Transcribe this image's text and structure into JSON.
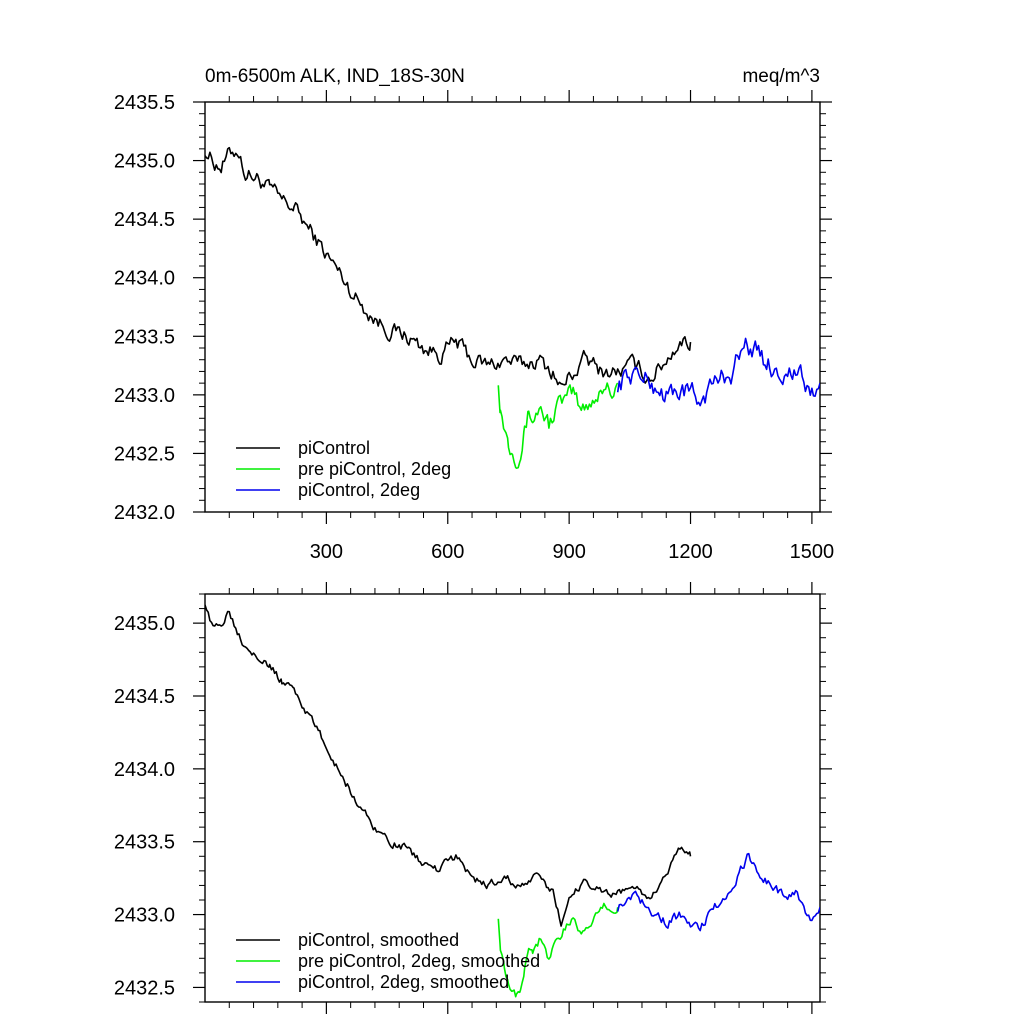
{
  "chart_data": [
    {
      "type": "line",
      "title": "0m-6500m ALK, IND_18S-30N",
      "units": "meq/m^3",
      "xlim": [
        0,
        1520
      ],
      "ylim": [
        2432.0,
        2435.5
      ],
      "xticks": [
        300,
        600,
        900,
        1200,
        1500
      ],
      "xtick_labels": [
        "300",
        "600",
        "900",
        "1200",
        "1500"
      ],
      "yticks": [
        2432.0,
        2432.5,
        2433.0,
        2433.5,
        2434.0,
        2434.5,
        2435.0,
        2435.5
      ],
      "ytick_labels": [
        "2432.0",
        "2432.5",
        "2433.0",
        "2433.5",
        "2434.0",
        "2434.5",
        "2435.0",
        "2435.5"
      ],
      "legend_position": "bottom-left",
      "series": [
        {
          "name": "piControl",
          "color": "#000000",
          "x": [
            0,
            20,
            40,
            60,
            80,
            100,
            130,
            160,
            190,
            220,
            260,
            300,
            340,
            380,
            420,
            460,
            500,
            540,
            580,
            620,
            660,
            700,
            740,
            780,
            820,
            860,
            880,
            900,
            940,
            980,
            1020,
            1060,
            1100,
            1140,
            1170,
            1200
          ],
          "y": [
            2435.1,
            2435.0,
            2434.95,
            2435.05,
            2435.1,
            2434.9,
            2434.85,
            2434.75,
            2434.65,
            2434.6,
            2434.4,
            2434.2,
            2434.0,
            2433.8,
            2433.65,
            2433.55,
            2433.5,
            2433.4,
            2433.35,
            2433.45,
            2433.3,
            2433.25,
            2433.3,
            2433.25,
            2433.3,
            2433.2,
            2433.05,
            2433.15,
            2433.3,
            2433.2,
            2433.2,
            2433.25,
            2433.15,
            2433.3,
            2433.45,
            2433.45
          ],
          "noise": 0.06
        },
        {
          "name": "pre piControl, 2deg",
          "color": "#00ee00",
          "x": [
            725,
            730,
            740,
            750,
            760,
            770,
            780,
            790,
            800,
            810,
            830,
            850,
            870,
            890,
            910,
            930,
            950,
            970,
            990,
            1010,
            1020
          ],
          "y": [
            2433.15,
            2432.9,
            2432.75,
            2432.6,
            2432.55,
            2432.5,
            2432.55,
            2432.7,
            2432.85,
            2432.8,
            2432.9,
            2432.75,
            2432.9,
            2432.95,
            2433.0,
            2432.85,
            2432.95,
            2433.0,
            2433.1,
            2433.05,
            2433.1
          ],
          "noise": 0.07
        },
        {
          "name": "piControl, 2deg",
          "color": "#0000ee",
          "x": [
            1020,
            1060,
            1100,
            1140,
            1180,
            1220,
            1260,
            1300,
            1340,
            1380,
            1420,
            1460,
            1500,
            1520
          ],
          "y": [
            2433.1,
            2433.2,
            2433.1,
            2433.0,
            2433.05,
            2432.95,
            2433.1,
            2433.2,
            2433.45,
            2433.3,
            2433.2,
            2433.2,
            2433.0,
            2433.1
          ],
          "noise": 0.08
        }
      ]
    },
    {
      "type": "line",
      "title": "",
      "xlim": [
        0,
        1520
      ],
      "ylim": [
        2432.4,
        2435.2
      ],
      "xticks": [
        300,
        600,
        900,
        1200,
        1500
      ],
      "xtick_labels": [],
      "yticks": [
        2432.5,
        2433.0,
        2433.5,
        2434.0,
        2434.5,
        2435.0
      ],
      "ytick_labels": [
        "2432.5",
        "2433.0",
        "2433.5",
        "2434.0",
        "2434.5",
        "2435.0"
      ],
      "legend_position": "bottom-left",
      "series": [
        {
          "name": "piControl, smoothed",
          "color": "#000000",
          "x": [
            0,
            20,
            40,
            60,
            80,
            100,
            130,
            160,
            190,
            220,
            260,
            300,
            340,
            380,
            420,
            460,
            500,
            540,
            580,
            620,
            660,
            700,
            740,
            780,
            820,
            860,
            880,
            900,
            940,
            980,
            1020,
            1060,
            1100,
            1140,
            1170,
            1200
          ],
          "y": [
            2435.15,
            2434.95,
            2435.0,
            2435.1,
            2434.95,
            2434.85,
            2434.8,
            2434.7,
            2434.6,
            2434.55,
            2434.35,
            2434.15,
            2433.95,
            2433.75,
            2433.6,
            2433.5,
            2433.45,
            2433.35,
            2433.3,
            2433.4,
            2433.25,
            2433.2,
            2433.25,
            2433.2,
            2433.25,
            2433.15,
            2432.95,
            2433.1,
            2433.25,
            2433.15,
            2433.15,
            2433.2,
            2433.1,
            2433.25,
            2433.45,
            2433.4
          ],
          "noise": 0.025
        },
        {
          "name": "pre piControl, 2deg, smoothed",
          "color": "#00ee00",
          "x": [
            725,
            730,
            740,
            750,
            760,
            770,
            780,
            790,
            800,
            810,
            830,
            850,
            870,
            890,
            910,
            930,
            950,
            970,
            990,
            1010,
            1020
          ],
          "y": [
            2433.0,
            2432.8,
            2432.65,
            2432.55,
            2432.5,
            2432.45,
            2432.5,
            2432.65,
            2432.8,
            2432.75,
            2432.85,
            2432.7,
            2432.85,
            2432.9,
            2432.95,
            2432.85,
            2432.95,
            2433.0,
            2433.05,
            2433.0,
            2433.05
          ],
          "noise": 0.03
        },
        {
          "name": "piControl, 2deg, smoothed",
          "color": "#0000ee",
          "x": [
            1020,
            1060,
            1100,
            1140,
            1180,
            1220,
            1260,
            1300,
            1340,
            1380,
            1420,
            1460,
            1500,
            1520
          ],
          "y": [
            2433.05,
            2433.15,
            2433.05,
            2432.95,
            2433.0,
            2432.9,
            2433.05,
            2433.15,
            2433.4,
            2433.25,
            2433.15,
            2433.15,
            2432.95,
            2433.05
          ],
          "noise": 0.03
        }
      ]
    }
  ]
}
